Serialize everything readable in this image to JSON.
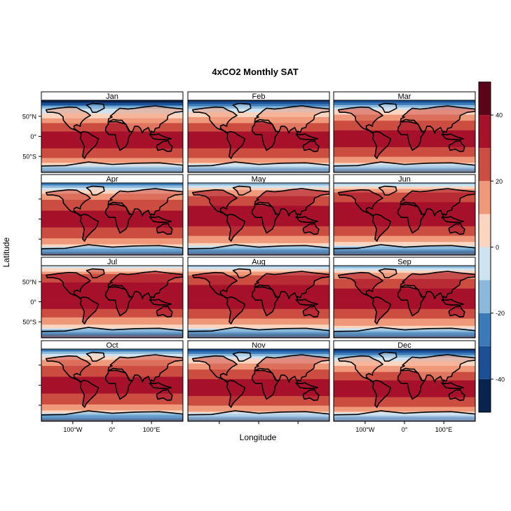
{
  "title": "4xCO2 Monthly SAT",
  "xlabel": "Longitude",
  "ylabel": "Latitude",
  "panels": [
    "Jan",
    "Feb",
    "Mar",
    "Apr",
    "May",
    "Jun",
    "Jul",
    "Aug",
    "Sep",
    "Oct",
    "Nov",
    "Dec"
  ],
  "lat_ticks": [
    "50°N",
    "0°",
    "50°S"
  ],
  "lon_ticks": [
    "100°W",
    "0°",
    "100°E"
  ],
  "colorbar": {
    "range": [
      -50,
      50
    ],
    "tick_values": [
      -40,
      -20,
      0,
      20,
      40
    ],
    "tick_labels": [
      "-40",
      "-20",
      "0",
      "20",
      "40"
    ],
    "bands": [
      {
        "from": -50,
        "to": -40,
        "color": "#08234d"
      },
      {
        "from": -40,
        "to": -30,
        "color": "#1b4f96"
      },
      {
        "from": -30,
        "to": -20,
        "color": "#3a7ab8"
      },
      {
        "from": -20,
        "to": -10,
        "color": "#8ab9db"
      },
      {
        "from": -10,
        "to": 0,
        "color": "#cfe2ef"
      },
      {
        "from": 0,
        "to": 10,
        "color": "#fcd5c0"
      },
      {
        "from": 10,
        "to": 20,
        "color": "#f0997a"
      },
      {
        "from": 20,
        "to": 30,
        "color": "#cc4d41"
      },
      {
        "from": 30,
        "to": 40,
        "color": "#a7112a"
      },
      {
        "from": 40,
        "to": 50,
        "color": "#5b0319"
      }
    ]
  },
  "colors": {
    "coastline": "#000000",
    "frame": "#000000",
    "missing": "#ffffff"
  }
}
